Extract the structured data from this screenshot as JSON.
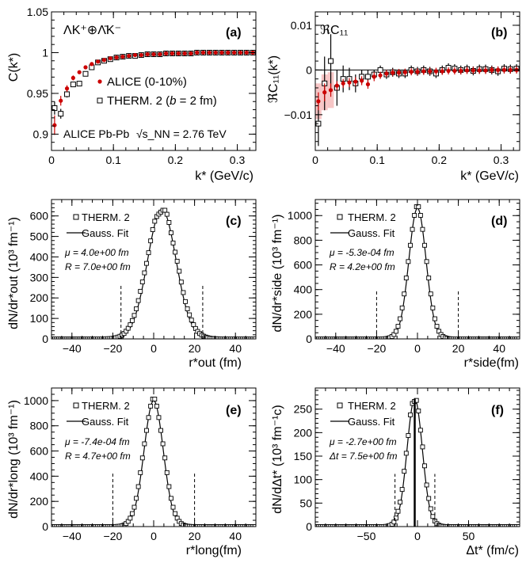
{
  "chart_data": [
    {
      "type": "scatter",
      "panel": "(a)",
      "title": "ΛK⁺⊕Λ̄K⁻",
      "ylabel": "C(k*)",
      "xlabel": "k* (GeV/c)",
      "xlim": [
        0,
        0.33
      ],
      "ylim": [
        0.88,
        1.05
      ],
      "xticks": [
        0,
        0.1,
        0.2,
        0.3
      ],
      "xtick_labels": [
        "0",
        "0.1",
        "0.2",
        "0.3"
      ],
      "yticks": [
        0.9,
        0.95,
        1,
        1.05
      ],
      "ytick_labels": [
        "0.9",
        "0.95",
        "1",
        "1.05"
      ],
      "annotation": "ALICE Pb-Pb",
      "annotation_math": "√s_NN = 2.76 TeV",
      "series": [
        {
          "name": "ALICE (0-10%)",
          "marker": "filled-circle",
          "color": "#cc0000",
          "x": [
            0.005,
            0.015,
            0.025,
            0.035,
            0.045,
            0.055,
            0.065,
            0.075,
            0.085,
            0.095,
            0.105,
            0.115,
            0.125,
            0.135,
            0.145,
            0.155,
            0.165,
            0.175,
            0.185,
            0.195,
            0.205,
            0.215,
            0.225,
            0.235,
            0.245,
            0.255,
            0.265,
            0.275,
            0.285,
            0.295,
            0.305,
            0.315,
            0.325
          ],
          "y": [
            0.911,
            0.941,
            0.956,
            0.969,
            0.976,
            0.982,
            0.986,
            0.989,
            0.991,
            0.993,
            0.994,
            0.995,
            0.996,
            0.997,
            0.997,
            0.998,
            0.998,
            0.998,
            0.999,
            0.999,
            0.999,
            0.999,
            0.999,
            1.0,
            1.0,
            1.0,
            1.0,
            1.0,
            1.0,
            1.0,
            1.0,
            1.0,
            1.0
          ],
          "err": [
            0.012,
            0.006,
            0.004,
            0.003,
            0.002,
            0.002,
            0.002,
            0.001,
            0.001,
            0.001,
            0.001,
            0.001,
            0.001,
            0.001,
            0.001,
            0.001,
            0.001,
            0.001,
            0.001,
            0.001,
            0.001,
            0.001,
            0.001,
            0.001,
            0.001,
            0.001,
            0.001,
            0.001,
            0.001,
            0.001,
            0.001,
            0.001,
            0.001
          ]
        },
        {
          "name": "THERM. 2 (b = 2 fm)",
          "label_main": "THERM. 2 (",
          "label_b": "b",
          "label_rest": " = 2 fm)",
          "marker": "open-square",
          "color": "#000000",
          "x": [
            0.005,
            0.015,
            0.025,
            0.035,
            0.045,
            0.055,
            0.065,
            0.075,
            0.085,
            0.095,
            0.105,
            0.115,
            0.125,
            0.135,
            0.145,
            0.155,
            0.165,
            0.175,
            0.185,
            0.195,
            0.205,
            0.215,
            0.225,
            0.235,
            0.245,
            0.255,
            0.265,
            0.275,
            0.285,
            0.295,
            0.305,
            0.315,
            0.325
          ],
          "y": [
            0.932,
            0.925,
            0.949,
            0.961,
            0.962,
            0.974,
            0.982,
            0.988,
            0.99,
            0.992,
            0.994,
            0.995,
            0.996,
            0.996,
            0.997,
            0.998,
            0.998,
            0.998,
            0.999,
            0.999,
            0.999,
            0.999,
            0.999,
            1.0,
            1.0,
            1.0,
            1.0,
            1.0,
            1.0,
            1.0,
            1.0,
            1.0,
            1.0
          ],
          "err": [
            0.008,
            0.006,
            0.004,
            0.003,
            0.003,
            0.002,
            0.002,
            0.002,
            0.001,
            0.001,
            0.001,
            0.001,
            0.001,
            0.001,
            0.001,
            0.001,
            0.001,
            0.001,
            0.001,
            0.001,
            0.001,
            0.001,
            0.001,
            0.001,
            0.001,
            0.001,
            0.001,
            0.001,
            0.001,
            0.001,
            0.001,
            0.001,
            0.001
          ]
        }
      ]
    },
    {
      "type": "scatter",
      "panel": "(b)",
      "title": "ℜC₁₁",
      "ylabel": "ℜC₁₁(k*)",
      "xlabel": "k* (GeV/c)",
      "xlim": [
        0,
        0.33
      ],
      "ylim": [
        -0.018,
        0.013
      ],
      "xticks": [
        0,
        0.1,
        0.2,
        0.3
      ],
      "xtick_labels": [
        "0",
        "0.1",
        "0.2",
        "0.3"
      ],
      "yticks": [
        -0.01,
        0,
        0.01
      ],
      "ytick_labels": [
        "−0.01",
        "0",
        "0.01"
      ],
      "series": [
        {
          "name": "ALICE",
          "marker": "filled-circle",
          "color": "#cc0000",
          "x": [
            0.005,
            0.015,
            0.025,
            0.035,
            0.045,
            0.055,
            0.065,
            0.075,
            0.085,
            0.095,
            0.105,
            0.115,
            0.125,
            0.135,
            0.145,
            0.155,
            0.165,
            0.175,
            0.185,
            0.195,
            0.205,
            0.215,
            0.225,
            0.235,
            0.245,
            0.255,
            0.265,
            0.275,
            0.285,
            0.295,
            0.305,
            0.315,
            0.325
          ],
          "y": [
            -0.007,
            -0.005,
            -0.0045,
            -0.0035,
            -0.003,
            -0.0028,
            -0.0026,
            -0.0024,
            -0.0032,
            -0.0015,
            -0.0012,
            -0.0008,
            -0.0006,
            -0.0006,
            -0.0005,
            -0.0004,
            -0.0004,
            -0.0003,
            -0.0003,
            -0.0003,
            -0.0003,
            -0.0002,
            -0.0002,
            -0.0002,
            -0.0001,
            -0.0001,
            -0.0001,
            -0.0001,
            0.0,
            0.0,
            0.0,
            0.0,
            0.0
          ],
          "err": [
            0.002,
            0.002,
            0.0015,
            0.001,
            0.001,
            0.001,
            0.001,
            0.001,
            0.001,
            0.001,
            0.0008,
            0.0008,
            0.0008,
            0.0008,
            0.0008,
            0.0008,
            0.0008,
            0.0008,
            0.0008,
            0.0008,
            0.0008,
            0.0008,
            0.0008,
            0.0008,
            0.0008,
            0.0008,
            0.0008,
            0.0008,
            0.0008,
            0.0008,
            0.0008,
            0.0008,
            0.0008
          ]
        },
        {
          "name": "THERM. 2",
          "marker": "open-square",
          "color": "#000000",
          "x": [
            0.005,
            0.015,
            0.025,
            0.035,
            0.045,
            0.055,
            0.065,
            0.075,
            0.085,
            0.095,
            0.105,
            0.115,
            0.125,
            0.135,
            0.145,
            0.155,
            0.165,
            0.175,
            0.185,
            0.195,
            0.205,
            0.215,
            0.225,
            0.235,
            0.245,
            0.255,
            0.265,
            0.275,
            0.285,
            0.295,
            0.305,
            0.315,
            0.325
          ],
          "y": [
            -0.012,
            -0.003,
            0.002,
            -0.004,
            -0.002,
            -0.002,
            -0.003,
            -0.0015,
            -0.0015,
            -0.001,
            0.0,
            -0.001,
            -0.0005,
            -0.0008,
            -0.0008,
            0.0,
            -0.0003,
            0.0,
            -0.0003,
            -0.0008,
            0.0,
            0.0005,
            0.0003,
            0.0,
            0.0002,
            -0.0002,
            0.0002,
            0.0002,
            0.0,
            -0.0003,
            0.0003,
            0.0002,
            0.0003
          ],
          "err": [
            0.005,
            0.006,
            0.006,
            0.004,
            0.003,
            0.0025,
            0.002,
            0.0015,
            0.0015,
            0.001,
            0.001,
            0.001,
            0.001,
            0.001,
            0.001,
            0.001,
            0.001,
            0.001,
            0.001,
            0.001,
            0.001,
            0.001,
            0.001,
            0.001,
            0.001,
            0.001,
            0.001,
            0.001,
            0.001,
            0.001,
            0.001,
            0.001,
            0.001
          ]
        }
      ]
    },
    {
      "type": "scatter",
      "panel": "(c)",
      "ylabel": "dN/dr*out (10³ fm⁻¹)",
      "xlabel": "r*out (fm)",
      "xlim": [
        -50,
        50
      ],
      "ylim": [
        0,
        680
      ],
      "xticks": [
        -40,
        -20,
        0,
        20,
        40
      ],
      "xtick_labels": [
        "−40",
        "−20",
        "0",
        "20",
        "40"
      ],
      "yticks": [
        0,
        100,
        200,
        300,
        400,
        500,
        600
      ],
      "ytick_labels": [
        "0",
        "100",
        "200",
        "300",
        "400",
        "500",
        "600"
      ],
      "legend": [
        "THERM. 2",
        "Gauss. Fit"
      ],
      "param_mu": "μ = 4.0e+00 fm",
      "param_R": "R = 7.0e+00 fm",
      "gauss": {
        "mu": 4.0,
        "R": 7.0,
        "amp": 632
      },
      "cutoffs": [
        -16,
        24
      ],
      "cutoff_height": 265
    },
    {
      "type": "scatter",
      "panel": "(d)",
      "ylabel": "dN/dr*side (10³ fm⁻¹)",
      "xlabel": "r*side(fm)",
      "xlim": [
        -50,
        50
      ],
      "ylim": [
        0,
        1130
      ],
      "xticks": [
        -40,
        -20,
        0,
        20,
        40
      ],
      "xtick_labels": [
        "−40",
        "−20",
        "0",
        "20",
        "40"
      ],
      "yticks": [
        0,
        200,
        400,
        600,
        800,
        1000
      ],
      "ytick_labels": [
        "0",
        "200",
        "400",
        "600",
        "800",
        "1000"
      ],
      "legend": [
        "THERM. 2",
        "Gauss. Fit"
      ],
      "param_mu": "μ = -5.3e-04 fm",
      "param_R": "R = 4.2e+00 fm",
      "gauss": {
        "mu": 0.0,
        "R": 4.2,
        "amp": 1060
      },
      "cutoffs": [
        -20,
        20
      ],
      "cutoff_height": 390
    },
    {
      "type": "scatter",
      "panel": "(e)",
      "ylabel": "dN/dr*long (10³ fm⁻¹)",
      "xlabel": "r*long(fm)",
      "xlim": [
        -50,
        50
      ],
      "ylim": [
        0,
        1100
      ],
      "xticks": [
        -40,
        -20,
        0,
        20,
        40
      ],
      "xtick_labels": [
        "−40",
        "−20",
        "0",
        "20",
        "40"
      ],
      "yticks": [
        0,
        200,
        400,
        600,
        800,
        1000
      ],
      "ytick_labels": [
        "0",
        "200",
        "400",
        "600",
        "800",
        "1000"
      ],
      "legend": [
        "THERM. 2",
        "Gauss. Fit"
      ],
      "param_mu": "μ = -7.4e-04 fm",
      "param_R": "R = 4.7e+00 fm",
      "gauss": {
        "mu": 0.0,
        "R": 4.7,
        "amp": 1000
      },
      "cutoffs": [
        -20,
        20
      ],
      "cutoff_height": 420
    },
    {
      "type": "scatter",
      "panel": "(f)",
      "ylabel": "dN/dΔt* (10³ fm⁻¹c)",
      "xlabel": "Δt* (fm/c)",
      "xlim": [
        -100,
        100
      ],
      "ylim": [
        0,
        295
      ],
      "xticks": [
        -50,
        0,
        50
      ],
      "xtick_labels": [
        "−50",
        "0",
        "50"
      ],
      "yticks": [
        0,
        50,
        100,
        150,
        200,
        250
      ],
      "ytick_labels": [
        "0",
        "50",
        "100",
        "150",
        "200",
        "250"
      ],
      "legend": [
        "THERM. 2",
        "Gauss. Fit"
      ],
      "param_mu": "μ = -2.7e+00 fm",
      "param_R": "Δt = 7.5e+00 fm",
      "gauss": {
        "mu": -2.7,
        "R": 7.5,
        "amp": 272
      },
      "cutoffs": [
        -22,
        17
      ],
      "cutoff_height": 112,
      "center_line": -2.7
    }
  ]
}
